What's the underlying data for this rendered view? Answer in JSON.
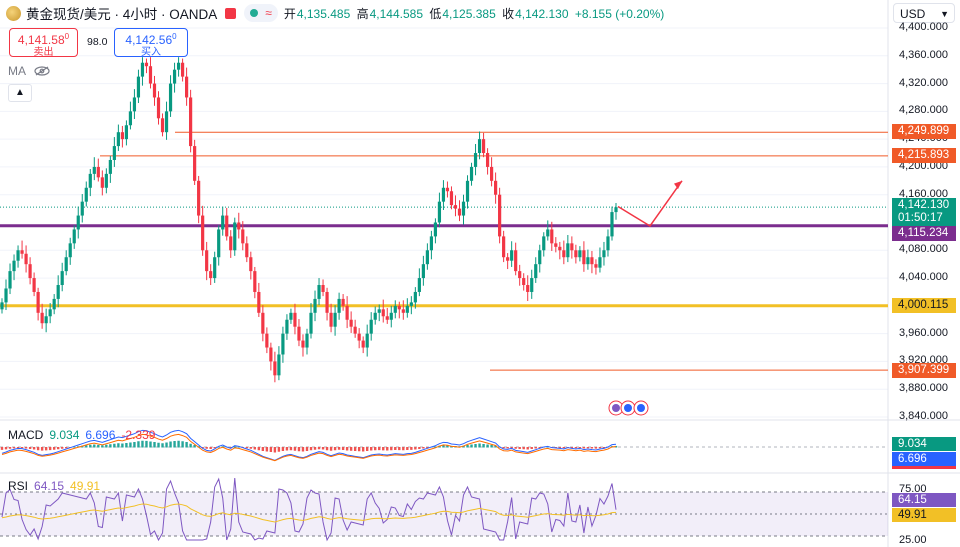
{
  "header": {
    "symbol_title": "黄金现货/美元 · 4小时 · OANDA",
    "status_pill_symbol": "≈",
    "ohlc": [
      {
        "key": "开",
        "value": "4,135.485"
      },
      {
        "key": "高",
        "value": "4,144.585"
      },
      {
        "key": "低",
        "value": "4,125.385"
      },
      {
        "key": "收",
        "value": "4,142.130"
      }
    ],
    "change": "+8.155 (+0.20%)"
  },
  "trade": {
    "sell_price": "4,141.58",
    "sell_sup": "0",
    "sell_label": "卖出",
    "spread": "98.0",
    "buy_price": "4,142.56",
    "buy_sup": "0",
    "buy_label": "买入"
  },
  "indicators_bar": {
    "ma_label": "MA",
    "collapse_icon": "chevron-up-icon"
  },
  "currency": {
    "selected": "USD"
  },
  "price_axis": {
    "labels": [
      "4,400.000",
      "4,360.000",
      "4,320.000",
      "4,280.000",
      "4,240.000",
      "4,200.000",
      "4,160.000",
      "4,080.000",
      "4,040.000",
      "3,960.000",
      "3,920.000",
      "3,880.000",
      "3,840.000"
    ],
    "price_min": 3840,
    "price_max": 4400
  },
  "levels": [
    {
      "price": "4,249.899",
      "value": 4249.899,
      "color": "#f05a28"
    },
    {
      "price": "4,215.893",
      "value": 4215.893,
      "color": "#f05a28"
    },
    {
      "price": "4,115.234",
      "value": 4115.234,
      "color": "#7b2d8e"
    },
    {
      "price": "4,000.115",
      "value": 4000.115,
      "color": "#f2c026"
    },
    {
      "price": "3,907.399",
      "value": 3907.399,
      "color": "#f05a28"
    }
  ],
  "last_price": {
    "price": "4,142.130",
    "countdown": "01:50:17",
    "value": 4142.13,
    "color": "#089981"
  },
  "candles_close": [
    4005,
    4025,
    4050,
    4065,
    4080,
    4075,
    4060,
    4040,
    4020,
    3990,
    3975,
    3985,
    3995,
    4010,
    4030,
    4050,
    4070,
    4090,
    4110,
    4130,
    4150,
    4170,
    4190,
    4200,
    4185,
    4170,
    4190,
    4210,
    4230,
    4250,
    4240,
    4260,
    4280,
    4300,
    4330,
    4350,
    4345,
    4320,
    4300,
    4270,
    4250,
    4280,
    4320,
    4340,
    4350,
    4330,
    4300,
    4230,
    4180,
    4130,
    4080,
    4050,
    4040,
    4070,
    4110,
    4130,
    4100,
    4080,
    4120,
    4110,
    4090,
    4070,
    4050,
    4020,
    3990,
    3960,
    3940,
    3920,
    3900,
    3930,
    3960,
    3980,
    3990,
    3970,
    3950,
    3940,
    3960,
    3990,
    4010,
    4030,
    4020,
    3990,
    3970,
    3990,
    4010,
    4000,
    3980,
    3970,
    3960,
    3950,
    3940,
    3960,
    3980,
    3990,
    3995,
    3985,
    3980,
    3990,
    4000,
    3995,
    3990,
    4000,
    4005,
    4020,
    4040,
    4060,
    4080,
    4100,
    4120,
    4150,
    4170,
    4165,
    4145,
    4140,
    4130,
    4150,
    4180,
    4200,
    4220,
    4240,
    4220,
    4200,
    4180,
    4160,
    4100,
    4070,
    4065,
    4080,
    4050,
    4040,
    4030,
    4020,
    4040,
    4060,
    4080,
    4100,
    4110,
    4090,
    4085,
    4080,
    4070,
    4090,
    4080,
    4070,
    4080,
    4060,
    4070,
    4060,
    4055,
    4070,
    4080,
    4100,
    4135,
    4142
  ],
  "forecast_arrow": {
    "points": [
      [
        4143,
        0
      ],
      [
        4115,
        1
      ],
      [
        4180,
        2
      ]
    ],
    "color": "#f23645"
  },
  "macd": {
    "label": "MACD",
    "v1": "9.034",
    "v1_color": "#089981",
    "v2": "6.696",
    "v2_color": "#2962ff",
    "v3": "-2.339",
    "v3_color": "#f23645",
    "tag1": "9.034",
    "tag1_color": "#089981",
    "tag2": "6.696",
    "tag2_color": "#2962ff",
    "tag3_color": "#f23645"
  },
  "rsi": {
    "label": "RSI",
    "v1": "64.15",
    "v1_color": "#7e57c2",
    "v2": "49.91",
    "v2_color": "#f2c026",
    "tag1": "64.15",
    "tag1_color": "#7e57c2",
    "tag2": "49.91",
    "tag2_color": "#f2c026",
    "axis_75": "75.00",
    "axis_25": "25.00"
  },
  "colors": {
    "up": "#089981",
    "down": "#f23645",
    "grid": "#f0f3fa"
  }
}
